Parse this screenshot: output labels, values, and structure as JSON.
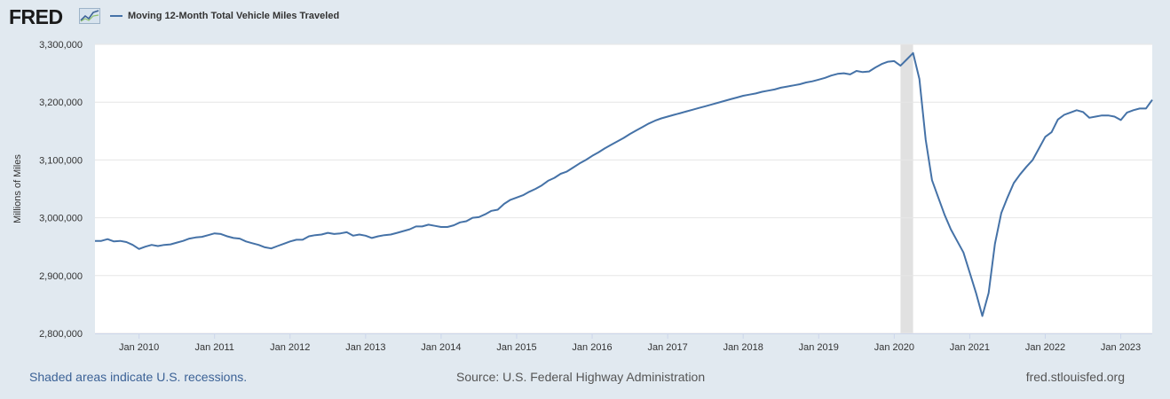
{
  "header": {
    "logo_text": "FRED",
    "logo_icon": "trend-chart-icon",
    "legend_label": "Moving 12-Month Total Vehicle Miles Traveled",
    "series_color": "#4572a7"
  },
  "footer": {
    "recession_note": "Shaded areas indicate U.S. recessions.",
    "source": "Source: U.S. Federal Highway Administration",
    "site": "fred.stlouisfed.org"
  },
  "chart_data": {
    "type": "line",
    "ylabel": "Millions of Miles",
    "ylim": [
      2800000,
      3300000
    ],
    "yticks": [
      2800000,
      2900000,
      3000000,
      3100000,
      3200000,
      3300000
    ],
    "ytick_labels": [
      "2,800,000",
      "2,900,000",
      "3,000,000",
      "3,100,000",
      "3,200,000",
      "3,300,000"
    ],
    "xlim": [
      "2009-06",
      "2023-06"
    ],
    "xticks": [
      "2010-01",
      "2011-01",
      "2012-01",
      "2013-01",
      "2014-01",
      "2015-01",
      "2016-01",
      "2017-01",
      "2018-01",
      "2019-01",
      "2020-01",
      "2021-01",
      "2022-01",
      "2023-01"
    ],
    "xtick_labels": [
      "Jan 2010",
      "Jan 2011",
      "Jan 2012",
      "Jan 2013",
      "Jan 2014",
      "Jan 2015",
      "Jan 2016",
      "Jan 2017",
      "Jan 2018",
      "Jan 2019",
      "Jan 2020",
      "Jan 2021",
      "Jan 2022",
      "Jan 2023"
    ],
    "recessions": [
      {
        "start": "2020-02",
        "end": "2020-04"
      }
    ],
    "grid": "horizontal",
    "series": [
      {
        "color": "#4572a7",
        "points": [
          [
            "2009-06",
            2960000
          ],
          [
            "2009-07",
            2960000
          ],
          [
            "2009-08",
            2963000
          ],
          [
            "2009-09",
            2959000
          ],
          [
            "2009-10",
            2960000
          ],
          [
            "2009-11",
            2958000
          ],
          [
            "2009-12",
            2953000
          ],
          [
            "2010-01",
            2946000
          ],
          [
            "2010-02",
            2950000
          ],
          [
            "2010-03",
            2953000
          ],
          [
            "2010-04",
            2951000
          ],
          [
            "2010-05",
            2953000
          ],
          [
            "2010-06",
            2954000
          ],
          [
            "2010-07",
            2957000
          ],
          [
            "2010-08",
            2960000
          ],
          [
            "2010-09",
            2964000
          ],
          [
            "2010-10",
            2966000
          ],
          [
            "2010-11",
            2967000
          ],
          [
            "2010-12",
            2970000
          ],
          [
            "2011-01",
            2973000
          ],
          [
            "2011-02",
            2972000
          ],
          [
            "2011-03",
            2968000
          ],
          [
            "2011-04",
            2965000
          ],
          [
            "2011-05",
            2964000
          ],
          [
            "2011-06",
            2959000
          ],
          [
            "2011-07",
            2956000
          ],
          [
            "2011-08",
            2953000
          ],
          [
            "2011-09",
            2949000
          ],
          [
            "2011-10",
            2947000
          ],
          [
            "2011-11",
            2951000
          ],
          [
            "2011-12",
            2955000
          ],
          [
            "2012-01",
            2959000
          ],
          [
            "2012-02",
            2962000
          ],
          [
            "2012-03",
            2962000
          ],
          [
            "2012-04",
            2968000
          ],
          [
            "2012-05",
            2970000
          ],
          [
            "2012-06",
            2971000
          ],
          [
            "2012-07",
            2974000
          ],
          [
            "2012-08",
            2972000
          ],
          [
            "2012-09",
            2973000
          ],
          [
            "2012-10",
            2975000
          ],
          [
            "2012-11",
            2969000
          ],
          [
            "2012-12",
            2971000
          ],
          [
            "2013-01",
            2969000
          ],
          [
            "2013-02",
            2965000
          ],
          [
            "2013-03",
            2968000
          ],
          [
            "2013-04",
            2970000
          ],
          [
            "2013-05",
            2971000
          ],
          [
            "2013-06",
            2974000
          ],
          [
            "2013-07",
            2977000
          ],
          [
            "2013-08",
            2980000
          ],
          [
            "2013-09",
            2985000
          ],
          [
            "2013-10",
            2985000
          ],
          [
            "2013-11",
            2988000
          ],
          [
            "2013-12",
            2986000
          ],
          [
            "2014-01",
            2984000
          ],
          [
            "2014-02",
            2984000
          ],
          [
            "2014-03",
            2987000
          ],
          [
            "2014-04",
            2992000
          ],
          [
            "2014-05",
            2994000
          ],
          [
            "2014-06",
            3000000
          ],
          [
            "2014-07",
            3001000
          ],
          [
            "2014-08",
            3006000
          ],
          [
            "2014-09",
            3012000
          ],
          [
            "2014-10",
            3014000
          ],
          [
            "2014-11",
            3024000
          ],
          [
            "2014-12",
            3031000
          ],
          [
            "2015-01",
            3035000
          ],
          [
            "2015-02",
            3039000
          ],
          [
            "2015-03",
            3045000
          ],
          [
            "2015-04",
            3050000
          ],
          [
            "2015-05",
            3056000
          ],
          [
            "2015-06",
            3064000
          ],
          [
            "2015-07",
            3069000
          ],
          [
            "2015-08",
            3076000
          ],
          [
            "2015-09",
            3080000
          ],
          [
            "2015-10",
            3087000
          ],
          [
            "2015-11",
            3094000
          ],
          [
            "2015-12",
            3100000
          ],
          [
            "2016-01",
            3107000
          ],
          [
            "2016-02",
            3113000
          ],
          [
            "2016-03",
            3120000
          ],
          [
            "2016-04",
            3126000
          ],
          [
            "2016-05",
            3132000
          ],
          [
            "2016-06",
            3138000
          ],
          [
            "2016-07",
            3145000
          ],
          [
            "2016-08",
            3151000
          ],
          [
            "2016-09",
            3157000
          ],
          [
            "2016-10",
            3163000
          ],
          [
            "2016-11",
            3168000
          ],
          [
            "2016-12",
            3172000
          ],
          [
            "2017-01",
            3175000
          ],
          [
            "2017-02",
            3178000
          ],
          [
            "2017-03",
            3181000
          ],
          [
            "2017-04",
            3184000
          ],
          [
            "2017-05",
            3187000
          ],
          [
            "2017-06",
            3190000
          ],
          [
            "2017-07",
            3193000
          ],
          [
            "2017-08",
            3196000
          ],
          [
            "2017-09",
            3199000
          ],
          [
            "2017-10",
            3202000
          ],
          [
            "2017-11",
            3205000
          ],
          [
            "2017-12",
            3208000
          ],
          [
            "2018-01",
            3211000
          ],
          [
            "2018-02",
            3213000
          ],
          [
            "2018-03",
            3215000
          ],
          [
            "2018-04",
            3218000
          ],
          [
            "2018-05",
            3220000
          ],
          [
            "2018-06",
            3222000
          ],
          [
            "2018-07",
            3225000
          ],
          [
            "2018-08",
            3227000
          ],
          [
            "2018-09",
            3229000
          ],
          [
            "2018-10",
            3231000
          ],
          [
            "2018-11",
            3234000
          ],
          [
            "2018-12",
            3236000
          ],
          [
            "2019-01",
            3239000
          ],
          [
            "2019-02",
            3242000
          ],
          [
            "2019-03",
            3246000
          ],
          [
            "2019-04",
            3249000
          ],
          [
            "2019-05",
            3250000
          ],
          [
            "2019-06",
            3248000
          ],
          [
            "2019-07",
            3254000
          ],
          [
            "2019-08",
            3252000
          ],
          [
            "2019-09",
            3253000
          ],
          [
            "2019-10",
            3260000
          ],
          [
            "2019-11",
            3266000
          ],
          [
            "2019-12",
            3270000
          ],
          [
            "2020-01",
            3271000
          ],
          [
            "2020-02",
            3263000
          ],
          [
            "2020-03",
            3274000
          ],
          [
            "2020-04",
            3285000
          ],
          [
            "2020-05",
            3240000
          ],
          [
            "2020-06",
            3135000
          ],
          [
            "2020-07",
            3065000
          ],
          [
            "2020-08",
            3035000
          ],
          [
            "2020-09",
            3005000
          ],
          [
            "2020-10",
            2980000
          ],
          [
            "2020-11",
            2960000
          ],
          [
            "2020-12",
            2940000
          ],
          [
            "2021-01",
            2905000
          ],
          [
            "2021-02",
            2870000
          ],
          [
            "2021-03",
            2830000
          ],
          [
            "2021-04",
            2870000
          ],
          [
            "2021-05",
            2955000
          ],
          [
            "2021-06",
            3008000
          ],
          [
            "2021-07",
            3035000
          ],
          [
            "2021-08",
            3060000
          ],
          [
            "2021-09",
            3075000
          ],
          [
            "2021-10",
            3088000
          ],
          [
            "2021-11",
            3100000
          ],
          [
            "2021-12",
            3120000
          ],
          [
            "2022-01",
            3140000
          ],
          [
            "2022-02",
            3148000
          ],
          [
            "2022-03",
            3170000
          ],
          [
            "2022-04",
            3178000
          ],
          [
            "2022-05",
            3182000
          ],
          [
            "2022-06",
            3186000
          ],
          [
            "2022-07",
            3183000
          ],
          [
            "2022-08",
            3173000
          ],
          [
            "2022-09",
            3175000
          ],
          [
            "2022-10",
            3177000
          ],
          [
            "2022-11",
            3177000
          ],
          [
            "2022-12",
            3175000
          ],
          [
            "2023-01",
            3169000
          ],
          [
            "2023-02",
            3182000
          ],
          [
            "2023-03",
            3186000
          ],
          [
            "2023-04",
            3189000
          ],
          [
            "2023-05",
            3189000
          ],
          [
            "2023-06",
            3204000
          ]
        ]
      }
    ]
  }
}
